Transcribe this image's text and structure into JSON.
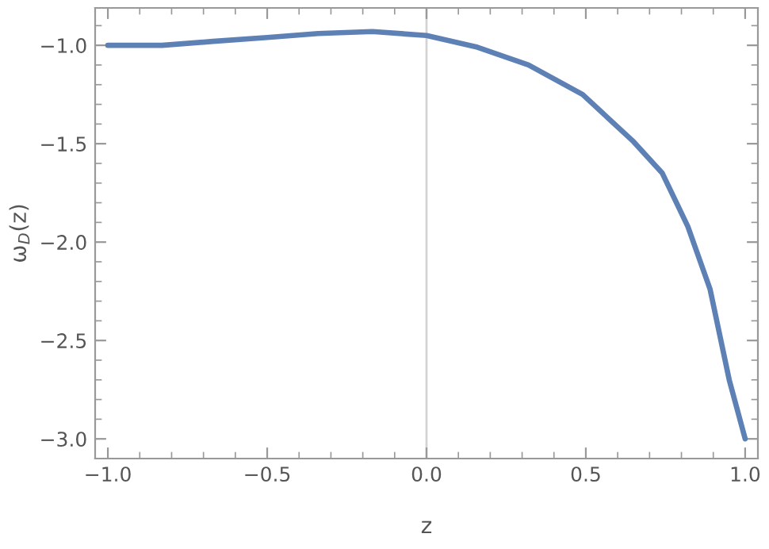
{
  "chart_data": {
    "type": "line",
    "xlabel": "z",
    "ylabel": "ω$_{D}$(z)",
    "x": [
      -1.0,
      -0.83,
      -0.67,
      -0.5,
      -0.34,
      -0.17,
      0.0,
      0.16,
      0.32,
      0.49,
      0.65,
      0.74,
      0.82,
      0.89,
      0.95,
      1.0
    ],
    "series": [
      {
        "color": "#5e81b5",
        "values": [
          -1.0,
          -1.0,
          -0.98,
          -0.96,
          -0.94,
          -0.93,
          -0.95,
          -1.01,
          -1.1,
          -1.25,
          -1.49,
          -1.65,
          -1.92,
          -2.24,
          -2.7,
          -3.0
        ]
      }
    ],
    "xlim": [
      -1.04,
      1.04
    ],
    "ylim": [
      -3.1,
      -0.81
    ],
    "xticks": [
      {
        "value": -1.0,
        "label": "−1.0"
      },
      -0.5,
      {
        "value": 0.0,
        "label": "0.0"
      },
      0.5,
      {
        "value": 1.0,
        "label": "1.0"
      }
    ],
    "yticks": [
      {
        "value": -3.0,
        "label": "−3.0"
      },
      -2.5,
      {
        "value": -2.0,
        "label": "−2.0"
      },
      -1.5,
      {
        "value": -1.0,
        "label": "−1.0"
      }
    ],
    "ref_lines": [
      {
        "axis": "x",
        "value": 0.0,
        "color": "#d3d3d3"
      }
    ],
    "grid": false,
    "legend": false,
    "marker": "none",
    "line_style": "solid"
  }
}
